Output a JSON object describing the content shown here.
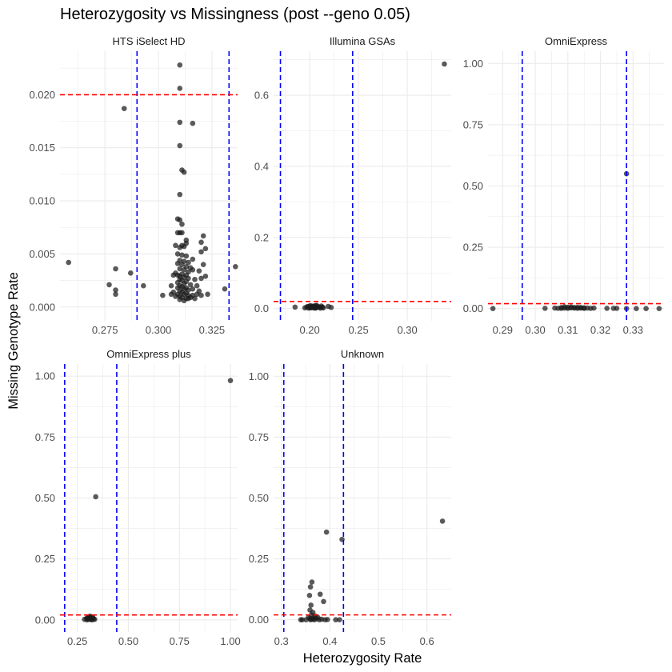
{
  "chart_data": {
    "type": "scatter",
    "title": "Heterozygosity vs Missingness (post --geno 0.05)",
    "xlabel": "Heterozygosity Rate",
    "ylabel": "Missing Genotype Rate",
    "grid": true,
    "colors": {
      "points": "#1a1a1a",
      "het_threshold": "#0000ff",
      "miss_threshold": "#ff0000",
      "grid": "#ebebeb"
    },
    "panels": [
      {
        "name": "HTS iSelect HD",
        "xlim": [
          0.254,
          0.337
        ],
        "ylim": [
          -0.0013,
          0.0241
        ],
        "xticks": [
          0.275,
          0.3,
          0.325
        ],
        "xtick_labels": [
          "0.275",
          "0.300",
          "0.325"
        ],
        "yticks": [
          0.0,
          0.005,
          0.01,
          0.015,
          0.02
        ],
        "ytick_labels": [
          "0.000",
          "0.005",
          "0.010",
          "0.015",
          "0.020"
        ],
        "vlines": [
          0.29,
          0.333
        ],
        "hline": 0.02,
        "points": [
          [
            0.31,
            0.0228
          ],
          [
            0.31,
            0.0206
          ],
          [
            0.284,
            0.0187
          ],
          [
            0.31,
            0.0174
          ],
          [
            0.316,
            0.0173
          ],
          [
            0.31,
            0.0152
          ],
          [
            0.311,
            0.0129
          ],
          [
            0.312,
            0.0127
          ],
          [
            0.31,
            0.0106
          ],
          [
            0.309,
            0.0083
          ],
          [
            0.31,
            0.0082
          ],
          [
            0.311,
            0.0078
          ],
          [
            0.309,
            0.007
          ],
          [
            0.31,
            0.007
          ],
          [
            0.311,
            0.007
          ],
          [
            0.313,
            0.0063
          ],
          [
            0.321,
            0.0067
          ],
          [
            0.313,
            0.006
          ],
          [
            0.32,
            0.0061
          ],
          [
            0.308,
            0.0058
          ],
          [
            0.311,
            0.0058
          ],
          [
            0.312,
            0.0057
          ],
          [
            0.31,
            0.0056
          ],
          [
            0.322,
            0.0055
          ],
          [
            0.32,
            0.0052
          ],
          [
            0.309,
            0.005
          ],
          [
            0.311,
            0.0049
          ],
          [
            0.313,
            0.0048
          ],
          [
            0.316,
            0.0045
          ],
          [
            0.31,
            0.0044
          ],
          [
            0.312,
            0.0043
          ],
          [
            0.314,
            0.0042
          ],
          [
            0.309,
            0.0041
          ],
          [
            0.311,
            0.004
          ],
          [
            0.321,
            0.004
          ],
          [
            0.313,
            0.0038
          ],
          [
            0.315,
            0.0037
          ],
          [
            0.31,
            0.0036
          ],
          [
            0.312,
            0.0035
          ],
          [
            0.316,
            0.0035
          ],
          [
            0.319,
            0.0034
          ],
          [
            0.314,
            0.0033
          ],
          [
            0.308,
            0.0032
          ],
          [
            0.311,
            0.0031
          ],
          [
            0.313,
            0.003
          ],
          [
            0.309,
            0.003
          ],
          [
            0.31,
            0.0029
          ],
          [
            0.312,
            0.0028
          ],
          [
            0.314,
            0.0027
          ],
          [
            0.317,
            0.0026
          ],
          [
            0.32,
            0.0027
          ],
          [
            0.322,
            0.0029
          ],
          [
            0.31,
            0.0026
          ],
          [
            0.311,
            0.0025
          ],
          [
            0.313,
            0.0024
          ],
          [
            0.309,
            0.0023
          ],
          [
            0.312,
            0.0022
          ],
          [
            0.315,
            0.0021
          ],
          [
            0.31,
            0.002
          ],
          [
            0.311,
            0.0019
          ],
          [
            0.313,
            0.0018
          ],
          [
            0.309,
            0.0018
          ],
          [
            0.312,
            0.0017
          ],
          [
            0.314,
            0.0016
          ],
          [
            0.316,
            0.0017
          ],
          [
            0.31,
            0.0015
          ],
          [
            0.311,
            0.0014
          ],
          [
            0.313,
            0.0013
          ],
          [
            0.309,
            0.0012
          ],
          [
            0.312,
            0.0012
          ],
          [
            0.314,
            0.0011
          ],
          [
            0.31,
            0.001
          ],
          [
            0.311,
            0.0009
          ],
          [
            0.313,
            0.0008
          ],
          [
            0.315,
            0.0009
          ],
          [
            0.318,
            0.0012
          ],
          [
            0.31,
            0.0007
          ],
          [
            0.312,
            0.0006
          ],
          [
            0.314,
            0.0008
          ],
          [
            0.308,
            0.001
          ],
          [
            0.317,
            0.0008
          ],
          [
            0.32,
            0.0011
          ],
          [
            0.316,
            0.0011
          ],
          [
            0.307,
            0.0014
          ],
          [
            0.306,
            0.002
          ],
          [
            0.307,
            0.003
          ],
          [
            0.318,
            0.002
          ],
          [
            0.319,
            0.0015
          ],
          [
            0.323,
            0.0012
          ],
          [
            0.331,
            0.0017
          ],
          [
            0.336,
            0.0038
          ],
          [
            0.258,
            0.0042
          ],
          [
            0.28,
            0.0036
          ],
          [
            0.28,
            0.0016
          ],
          [
            0.28,
            0.0012
          ],
          [
            0.277,
            0.0021
          ],
          [
            0.287,
            0.0032
          ],
          [
            0.293,
            0.002
          ],
          [
            0.302,
            0.0011
          ],
          [
            0.306,
            0.0012
          ]
        ]
      },
      {
        "name": "Illumina GSAs",
        "xlim": [
          0.163,
          0.345
        ],
        "ylim": [
          -0.0345,
          0.724
        ],
        "xticks": [
          0.2,
          0.25,
          0.3
        ],
        "xtick_labels": [
          "0.20",
          "0.25",
          "0.30"
        ],
        "yticks": [
          0.0,
          0.2,
          0.4,
          0.6
        ],
        "ytick_labels": [
          "0.0",
          "0.2",
          "0.4",
          "0.6"
        ],
        "vlines": [
          0.17,
          0.244
        ],
        "hline": 0.02,
        "points": [
          [
            0.338,
            0.688
          ],
          [
            0.185,
            0.004
          ],
          [
            0.195,
            0.002
          ],
          [
            0.198,
            0.006
          ],
          [
            0.2,
            0.004
          ],
          [
            0.201,
            0.008
          ],
          [
            0.202,
            0.003
          ],
          [
            0.203,
            0.006
          ],
          [
            0.204,
            0.002
          ],
          [
            0.205,
            0.005
          ],
          [
            0.206,
            0.008
          ],
          [
            0.207,
            0.003
          ],
          [
            0.208,
            0.006
          ],
          [
            0.21,
            0.004
          ],
          [
            0.212,
            0.007
          ],
          [
            0.214,
            0.002
          ],
          [
            0.219,
            0.006
          ],
          [
            0.222,
            0.003
          ],
          [
            0.199,
            0.001
          ],
          [
            0.201,
            0.002
          ],
          [
            0.204,
            0.007
          ],
          [
            0.206,
            0.001
          ],
          [
            0.209,
            0.004
          ],
          [
            0.211,
            0.001
          ],
          [
            0.203,
            0.004
          ],
          [
            0.205,
            0.002
          ],
          [
            0.207,
            0.009
          ],
          [
            0.2,
            0.007
          ],
          [
            0.197,
            0.004
          ],
          [
            0.213,
            0.004
          ]
        ]
      },
      {
        "name": "OmniExpress",
        "xlim": [
          0.2855,
          0.3395
        ],
        "ylim": [
          -0.05,
          1.05
        ],
        "xticks": [
          0.29,
          0.3,
          0.31,
          0.32,
          0.33
        ],
        "xtick_labels": [
          "0.29",
          "0.30",
          "0.31",
          "0.32",
          "0.33"
        ],
        "yticks": [
          0.0,
          0.25,
          0.5,
          0.75,
          1.0
        ],
        "ytick_labels": [
          "0.00",
          "0.25",
          "0.50",
          "0.75",
          "1.00"
        ],
        "vlines": [
          0.296,
          0.328
        ],
        "hline": 0.02,
        "points": [
          [
            0.328,
            0.55
          ],
          [
            0.287,
            0.0
          ],
          [
            0.303,
            0.001
          ],
          [
            0.306,
            0.002
          ],
          [
            0.307,
            0.001
          ],
          [
            0.308,
            0.004
          ],
          [
            0.309,
            0.002
          ],
          [
            0.31,
            0.005
          ],
          [
            0.31,
            0.001
          ],
          [
            0.311,
            0.003
          ],
          [
            0.311,
            0.006
          ],
          [
            0.312,
            0.002
          ],
          [
            0.312,
            0.004
          ],
          [
            0.313,
            0.001
          ],
          [
            0.313,
            0.005
          ],
          [
            0.314,
            0.002
          ],
          [
            0.314,
            0.004
          ],
          [
            0.315,
            0.001
          ],
          [
            0.315,
            0.003
          ],
          [
            0.316,
            0.002
          ],
          [
            0.317,
            0.001
          ],
          [
            0.318,
            0.002
          ],
          [
            0.322,
            0.001
          ],
          [
            0.324,
            0.001
          ],
          [
            0.325,
            0.001
          ],
          [
            0.328,
            0.0
          ],
          [
            0.331,
            0.0
          ],
          [
            0.334,
            0.0
          ],
          [
            0.338,
            0.0
          ],
          [
            0.309,
            0.007
          ],
          [
            0.308,
            0.001
          ]
        ]
      },
      {
        "name": "OmniExpress plus",
        "xlim": [
          0.165,
          1.035
        ],
        "ylim": [
          -0.05,
          1.05
        ],
        "xticks": [
          0.25,
          0.5,
          0.75,
          1.0
        ],
        "xtick_labels": [
          "0.25",
          "0.50",
          "0.75",
          "1.00"
        ],
        "yticks": [
          0.0,
          0.25,
          0.5,
          0.75,
          1.0
        ],
        "ytick_labels": [
          "0.00",
          "0.25",
          "0.50",
          "0.75",
          "1.00"
        ],
        "vlines": [
          0.188,
          0.443
        ],
        "hline": 0.02,
        "points": [
          [
            1.0,
            0.982
          ],
          [
            0.34,
            0.505
          ],
          [
            0.285,
            0.002
          ],
          [
            0.295,
            0.005
          ],
          [
            0.3,
            0.01
          ],
          [
            0.305,
            0.003
          ],
          [
            0.31,
            0.008
          ],
          [
            0.315,
            0.001
          ],
          [
            0.32,
            0.006
          ],
          [
            0.325,
            0.012
          ],
          [
            0.33,
            0.004
          ],
          [
            0.335,
            0.002
          ],
          [
            0.298,
            0.0
          ],
          [
            0.312,
            0.015
          ],
          [
            0.322,
            0.0
          ],
          [
            0.308,
            0.011
          ],
          [
            0.318,
            0.009
          ]
        ]
      },
      {
        "name": "Unknown",
        "xlim": [
          0.284,
          0.65
        ],
        "ylim": [
          -0.0502,
          1.0502
        ],
        "xticks": [
          0.3,
          0.4,
          0.5,
          0.6
        ],
        "xtick_labels": [
          "0.3",
          "0.4",
          "0.5",
          "0.6"
        ],
        "yticks": [
          0.0,
          0.25,
          0.5,
          0.75,
          1.0
        ],
        "ytick_labels": [
          "0.00",
          "0.25",
          "0.50",
          "0.75",
          "1.00"
        ],
        "vlines": [
          0.305,
          0.428
        ],
        "hline": 0.02,
        "points": [
          [
            0.632,
            0.405
          ],
          [
            0.393,
            0.36
          ],
          [
            0.425,
            0.33
          ],
          [
            0.363,
            0.155
          ],
          [
            0.36,
            0.135
          ],
          [
            0.38,
            0.105
          ],
          [
            0.358,
            0.1
          ],
          [
            0.387,
            0.075
          ],
          [
            0.361,
            0.06
          ],
          [
            0.359,
            0.04
          ],
          [
            0.365,
            0.03
          ],
          [
            0.362,
            0.02
          ],
          [
            0.37,
            0.015
          ],
          [
            0.375,
            0.01
          ],
          [
            0.356,
            0.01
          ],
          [
            0.34,
            0.0
          ],
          [
            0.343,
            0.0
          ],
          [
            0.351,
            0.0
          ],
          [
            0.36,
            0.0
          ],
          [
            0.364,
            0.002
          ],
          [
            0.368,
            0.0
          ],
          [
            0.372,
            0.004
          ],
          [
            0.378,
            0.0
          ],
          [
            0.383,
            0.002
          ],
          [
            0.39,
            0.0
          ],
          [
            0.395,
            0.001
          ],
          [
            0.412,
            0.0
          ],
          [
            0.42,
            0.0
          ],
          [
            0.366,
            0.008
          ],
          [
            0.359,
            0.005
          ]
        ]
      }
    ]
  }
}
